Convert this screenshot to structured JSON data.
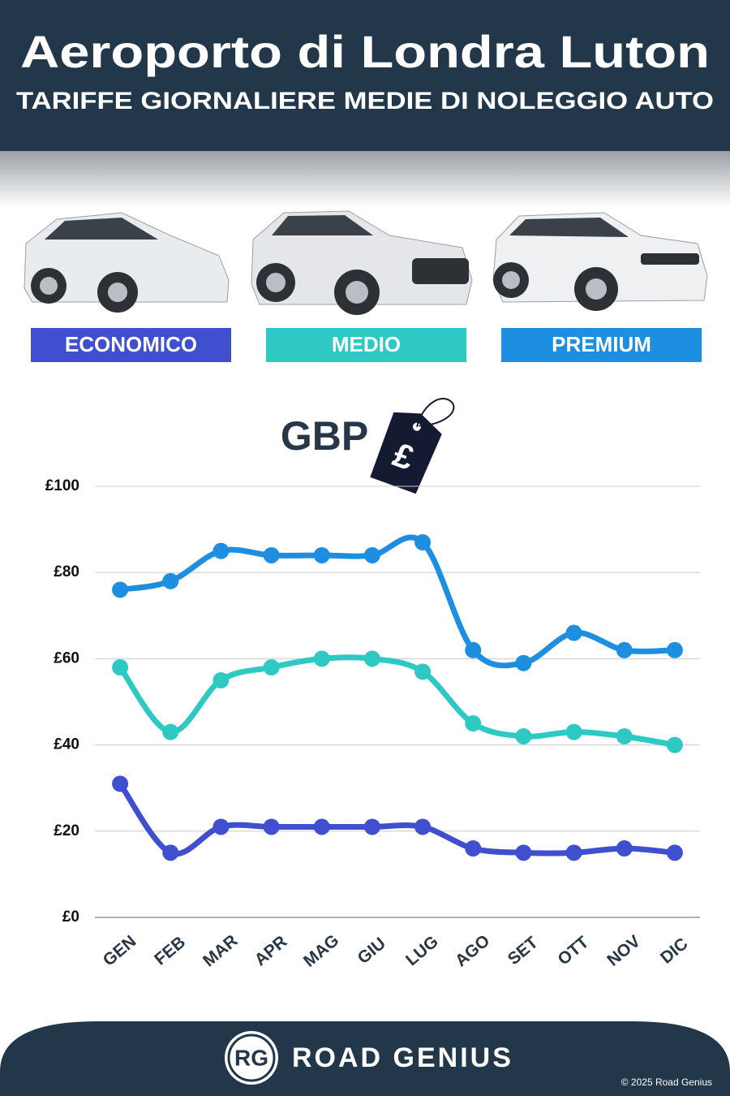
{
  "header": {
    "title": "Aeroporto di Londra Luton",
    "subtitle": "TARIFFE GIORNALIERE MEDIE DI NOLEGGIO AUTO"
  },
  "chart_data": {
    "type": "line",
    "currency": "GBP",
    "currency_symbol": "£",
    "categories": [
      "GEN",
      "FEB",
      "MAR",
      "APR",
      "MAG",
      "GIU",
      "LUG",
      "AGO",
      "SET",
      "OTT",
      "NOV",
      "DIC"
    ],
    "series": [
      {
        "name": "ECONOMICO",
        "color": "#3f4fd0",
        "values": [
          31,
          15,
          21,
          21,
          21,
          21,
          21,
          16,
          15,
          15,
          16,
          15
        ]
      },
      {
        "name": "MEDIO",
        "color": "#2ec9c3",
        "values": [
          58,
          43,
          55,
          58,
          60,
          60,
          57,
          45,
          42,
          43,
          42,
          40
        ]
      },
      {
        "name": "PREMIUM",
        "color": "#1e8fe0",
        "values": [
          76,
          78,
          85,
          84,
          84,
          84,
          87,
          62,
          59,
          66,
          62,
          62
        ]
      }
    ],
    "ylim": [
      0,
      100
    ],
    "yticks": [
      {
        "value": 0,
        "label": "£0"
      },
      {
        "value": 20,
        "label": "£20"
      },
      {
        "value": 40,
        "label": "£40"
      },
      {
        "value": 60,
        "label": "£60"
      },
      {
        "value": 80,
        "label": "£80"
      },
      {
        "value": 100,
        "label": "£100"
      }
    ],
    "grid": true
  },
  "footer": {
    "logo": "RG",
    "brand": "ROAD GENIUS",
    "copyright": "© 2025 Road Genius"
  }
}
